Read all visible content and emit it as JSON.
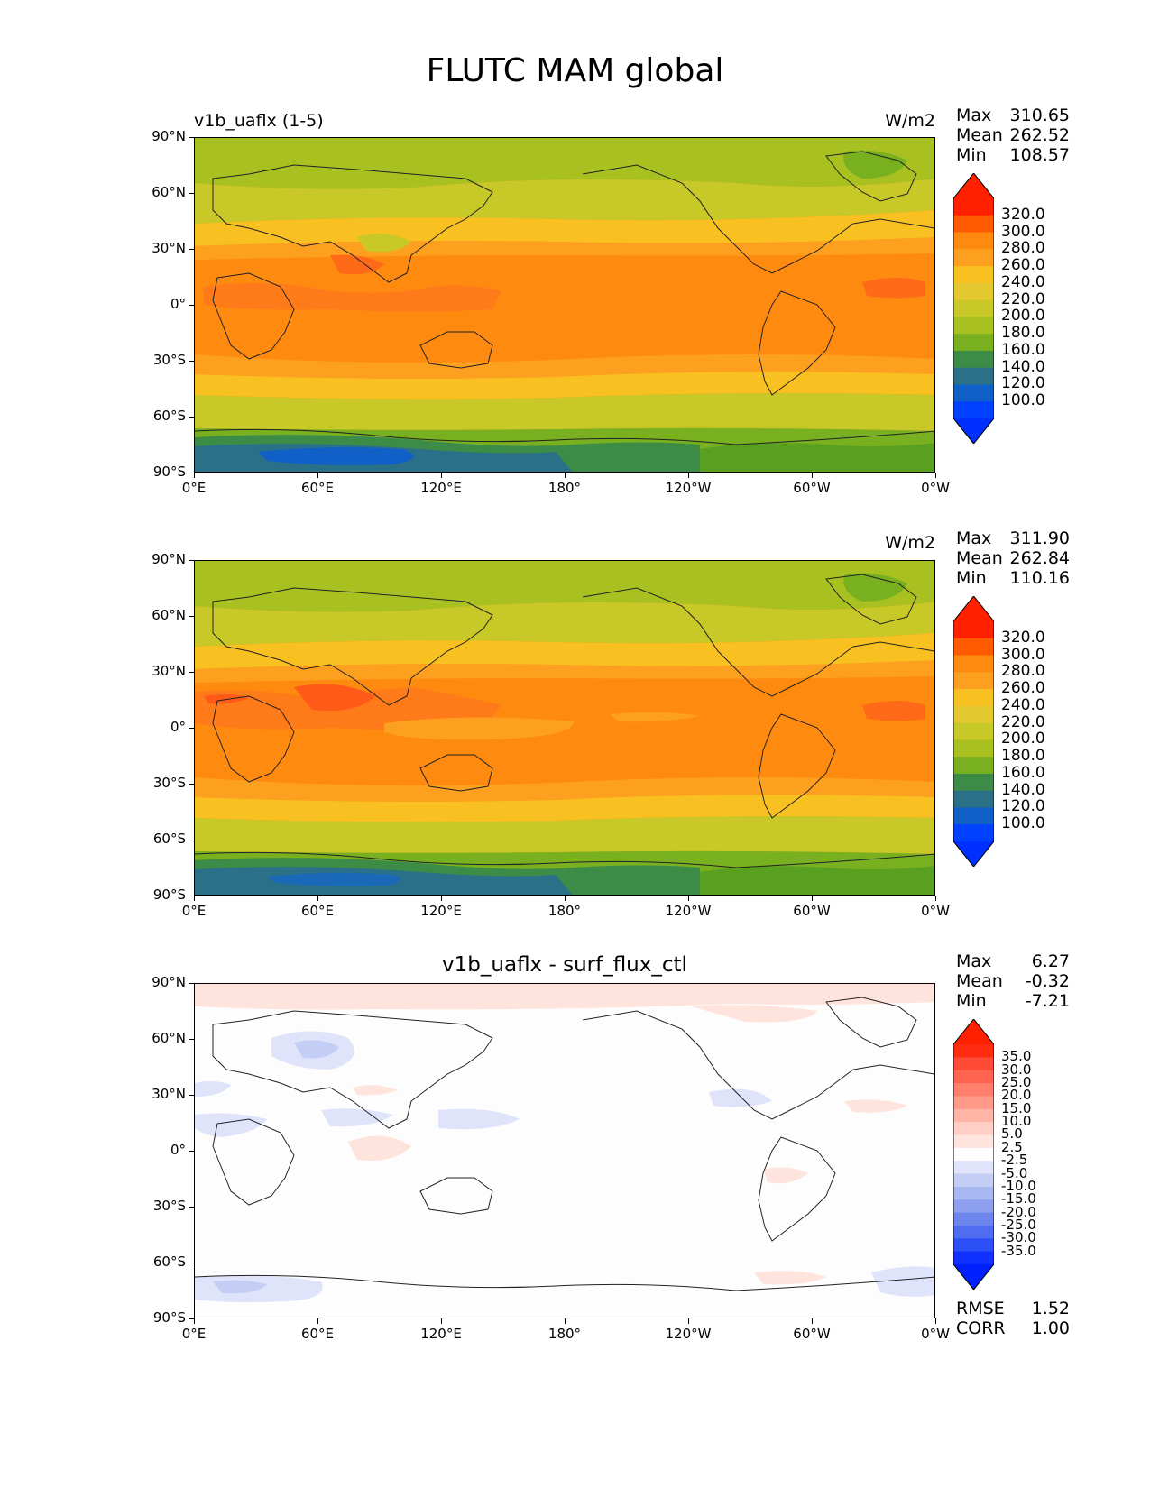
{
  "title": "FLUTC MAM global",
  "panels": [
    {
      "label": "v1b_uaflx (1-5)",
      "units": "W/m2",
      "stats": [
        {
          "k": "Max",
          "v": "310.65"
        },
        {
          "k": "Mean",
          "v": "262.52"
        },
        {
          "k": "Min",
          "v": "108.57"
        }
      ],
      "field_min": 108.57,
      "field_mean": 262.52,
      "field_max": 310.65
    },
    {
      "label": "",
      "units": "W/m2",
      "stats": [
        {
          "k": "Max",
          "v": "311.90"
        },
        {
          "k": "Mean",
          "v": "262.84"
        },
        {
          "k": "Min",
          "v": "110.16"
        }
      ],
      "field_min": 110.16,
      "field_mean": 262.84,
      "field_max": 311.9
    },
    {
      "label": "v1b_uaflx - surf_flux_ctl",
      "units": "",
      "stats": [
        {
          "k": "Max",
          "v": "6.27"
        },
        {
          "k": "Mean",
          "v": "-0.32"
        },
        {
          "k": "Min",
          "v": "-7.21"
        }
      ],
      "extra_stats": [
        {
          "k": "RMSE",
          "v": "1.52"
        },
        {
          "k": "CORR",
          "v": "1.00"
        }
      ],
      "field_min": -7.21,
      "field_mean": -0.32,
      "field_max": 6.27
    }
  ],
  "y_ticks": [
    "90°N",
    "60°N",
    "30°N",
    "0°",
    "30°S",
    "60°S",
    "90°S"
  ],
  "x_ticks": [
    "0°E",
    "60°E",
    "120°E",
    "180°",
    "120°W",
    "60°W",
    "0°W"
  ],
  "colorbar_abs": {
    "labels": [
      "320.0",
      "300.0",
      "280.0",
      "260.0",
      "240.0",
      "220.0",
      "200.0",
      "180.0",
      "160.0",
      "140.0",
      "120.0",
      "100.0"
    ],
    "colors": [
      "#ff2000",
      "#ff5a00",
      "#ff8a10",
      "#fda020",
      "#f8c020",
      "#e4c830",
      "#c8c828",
      "#a8c020",
      "#78b020",
      "#3c8c48",
      "#2a7088",
      "#1060c8",
      "#0040ff"
    ],
    "top_color": "#ff2000",
    "bottom_color": "#0030ff"
  },
  "colorbar_diff": {
    "labels": [
      "35.0",
      "30.0",
      "25.0",
      "20.0",
      "15.0",
      "10.0",
      "5.0",
      "2.5",
      "-2.5",
      "-5.0",
      "-10.0",
      "-15.0",
      "-20.0",
      "-25.0",
      "-30.0",
      "-35.0"
    ],
    "colors": [
      "#ff2a10",
      "#ff4a35",
      "#ff6450",
      "#ff7f6c",
      "#ff9a88",
      "#ffb4a6",
      "#ffcec4",
      "#ffe4de",
      "#fdfdfd",
      "#e0e4fa",
      "#c4cef5",
      "#a8b8f2",
      "#8ca0ef",
      "#6e86ec",
      "#506cf0",
      "#2c50f5",
      "#1030ff"
    ],
    "top_color": "#ff2000",
    "bottom_color": "#0020ff"
  }
}
